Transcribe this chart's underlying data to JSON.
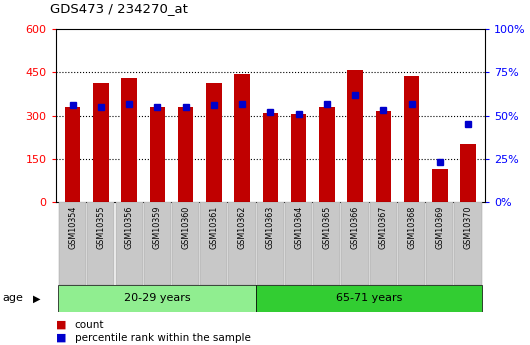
{
  "title": "GDS473 / 234270_at",
  "samples": [
    "GSM10354",
    "GSM10355",
    "GSM10356",
    "GSM10359",
    "GSM10360",
    "GSM10361",
    "GSM10362",
    "GSM10363",
    "GSM10364",
    "GSM10365",
    "GSM10366",
    "GSM10367",
    "GSM10368",
    "GSM10369",
    "GSM10370"
  ],
  "count": [
    330,
    415,
    432,
    330,
    330,
    415,
    443,
    310,
    305,
    330,
    457,
    315,
    436,
    115,
    200
  ],
  "percentile": [
    56,
    55,
    57,
    55,
    55,
    56,
    57,
    52,
    51,
    57,
    62,
    53,
    57,
    23,
    45
  ],
  "bar_color": "#C00000",
  "pct_color": "#0000CC",
  "ylim_left": [
    0,
    600
  ],
  "ylim_right": [
    0,
    100
  ],
  "yticks_left": [
    0,
    150,
    300,
    450,
    600
  ],
  "yticks_right": [
    0,
    25,
    50,
    75,
    100
  ],
  "ytick_labels_right": [
    "0%",
    "25%",
    "50%",
    "75%",
    "100%"
  ],
  "group1_label": "20-29 years",
  "group2_label": "65-71 years",
  "group1_indices": [
    0,
    1,
    2,
    3,
    4,
    5,
    6
  ],
  "group2_indices": [
    7,
    8,
    9,
    10,
    11,
    12,
    13,
    14
  ],
  "age_label": "age",
  "legend_count": "count",
  "legend_pct": "percentile rank within the sample",
  "bg_color": "#FFFFFF",
  "grid_lines": [
    150,
    300,
    450
  ],
  "group_color1": "#90EE90",
  "group_color2": "#32CD32",
  "tick_bg": "#C8C8C8",
  "bar_width": 0.55
}
